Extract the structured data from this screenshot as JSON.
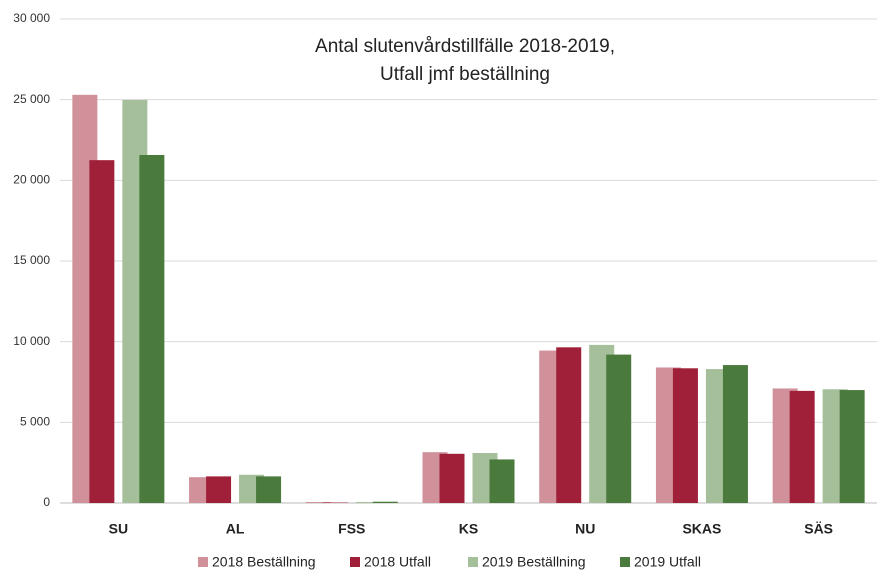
{
  "chart_data": {
    "type": "bar",
    "title": [
      "Antal slutenvårdstillfälle 2018-2019,",
      "Utfall jmf beställning"
    ],
    "categories": [
      "SU",
      "AL",
      "FSS",
      "KS",
      "NU",
      "SKAS",
      "SÄS"
    ],
    "series": [
      {
        "name": "2018 Beställning",
        "color": "#d0919a",
        "values": [
          25300,
          1600,
          60,
          3150,
          9450,
          8400,
          7100
        ]
      },
      {
        "name": "2018 Utfall",
        "color": "#a0203a",
        "values": [
          21250,
          1650,
          30,
          3050,
          9650,
          8350,
          6950
        ]
      },
      {
        "name": "2019 Beställning",
        "color": "#a4bf9a",
        "values": [
          24980,
          1750,
          60,
          3100,
          9800,
          8300,
          7050
        ]
      },
      {
        "name": "2019 Utfall",
        "color": "#4a7a3c",
        "values": [
          21570,
          1650,
          80,
          2700,
          9200,
          8550,
          7000
        ]
      }
    ],
    "ylim": [
      0,
      30000
    ],
    "yticks": [
      0,
      {
        "value": 5000,
        "label": "5 000"
      },
      {
        "value": 10000,
        "label": "10 000"
      },
      {
        "value": 15000,
        "label": "15 000"
      },
      {
        "value": 20000,
        "label": "20 000"
      },
      {
        "value": 25000,
        "label": "25 000"
      },
      {
        "value": 30000,
        "label": "30 000"
      }
    ],
    "grid": true,
    "legend": "bottom"
  }
}
